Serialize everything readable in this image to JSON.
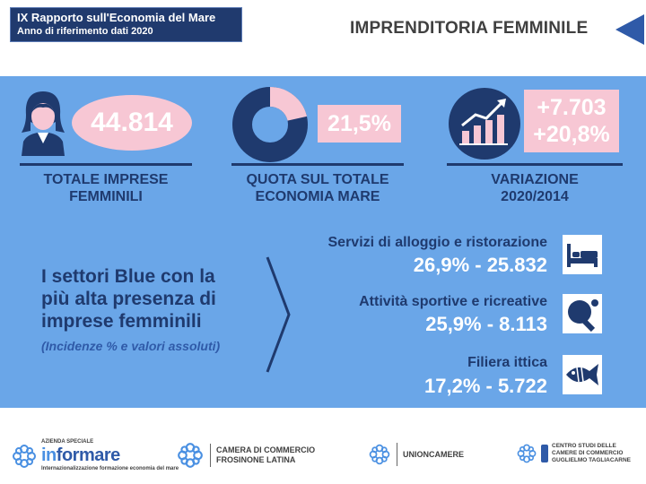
{
  "header": {
    "report_title": "IX Rapporto sull'Economia del Mare",
    "report_subtitle": "Anno di riferimento dati 2020",
    "section_title": "IMPRENDITORIA FEMMINILE",
    "back_icon": "triangle-left-icon"
  },
  "kpis": [
    {
      "value": "44.814",
      "label_line1": "TOTALE IMPRESE",
      "label_line2": "FEMMINILI",
      "icon": "woman-icon"
    },
    {
      "value": "21,5%",
      "label_line1": "QUOTA SUL TOTALE",
      "label_line2": "ECONOMIA MARE",
      "icon": "donut-chart-icon",
      "share_fraction": 0.215
    },
    {
      "value_line1": "+7.703",
      "value_line2": "+20,8%",
      "label_line1": "VARIAZIONE",
      "label_line2": "2020/2014",
      "icon": "growth-chart-icon"
    }
  ],
  "sectors_intro": {
    "line1": "I settori Blue con la",
    "line2": "più alta presenza di",
    "line3": "imprese femminili",
    "note": "(Incidenze % e valori assoluti)"
  },
  "sectors": [
    {
      "label": "Servizi di alloggio e ristorazione",
      "value": "26,9%  -  25.832",
      "icon": "bed-icon"
    },
    {
      "label": "Attività sportive e ricreative",
      "value": "25,9%  -  8.113",
      "icon": "ping-pong-icon"
    },
    {
      "label": "Filiera ittica",
      "value": "17,2%  -  5.722",
      "icon": "fish-icon"
    }
  ],
  "footer": {
    "informare": {
      "small_top": "AZIENDA SPECIALE",
      "word_a": "in",
      "word_b": "for",
      "word_c": "mare",
      "small_bottom": "Internazionalizzazione formazione economia del mare"
    },
    "camera": {
      "line1": "CAMERA DI COMMERCIO",
      "line2": "FROSINONE LATINA"
    },
    "unioncamere": {
      "name": "UNIONCAMERE"
    },
    "tagliacarne": {
      "line1": "CENTRO STUDI DELLE",
      "line2": "CAMERE DI COMMERCIO",
      "line3": "GUGLIELMO TAGLIACARNE"
    }
  },
  "colors": {
    "panel": "#6aa6e8",
    "navy": "#1f3a6e",
    "pink": "#f7c7d4",
    "accent": "#2f5aa8"
  }
}
